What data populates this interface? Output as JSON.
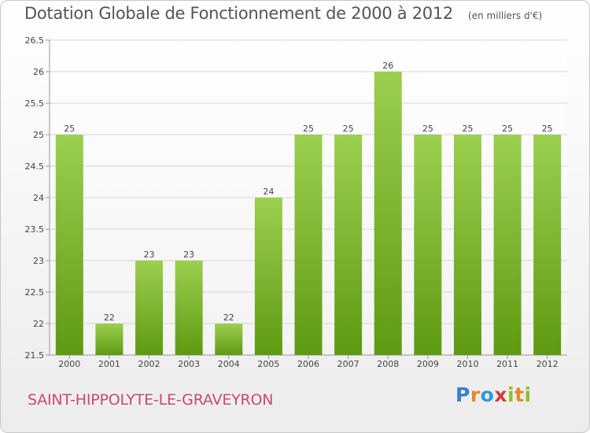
{
  "header": {
    "title": "Dotation Globale de Fonctionnement de 2000 à 2012",
    "unit": "(en milliers d'€)"
  },
  "footer": {
    "commune": "SAINT-HIPPOLYTE-LE-GRAVEYRON",
    "brand": "Proxiti"
  },
  "colors": {
    "bar_top": "#9ccf4f",
    "bar_bottom": "#5e9a12",
    "grid": "#d6d6d6"
  },
  "chart_data": {
    "type": "bar",
    "categories": [
      "2000",
      "2001",
      "2002",
      "2003",
      "2004",
      "2005",
      "2006",
      "2007",
      "2008",
      "2009",
      "2010",
      "2011",
      "2012"
    ],
    "values": [
      25,
      22,
      23,
      23,
      22,
      24,
      25,
      25,
      26,
      25,
      25,
      25,
      25
    ],
    "ylim": [
      21.5,
      26.5
    ],
    "yticks": [
      21.5,
      22,
      22.5,
      23,
      23.5,
      24,
      24.5,
      25,
      25.5,
      26,
      26.5
    ],
    "yticklabels": [
      "21.5",
      "22",
      "22.5",
      "23",
      "23.5",
      "24",
      "24.5",
      "25",
      "25.5",
      "26",
      "26.5"
    ],
    "grid": true
  }
}
